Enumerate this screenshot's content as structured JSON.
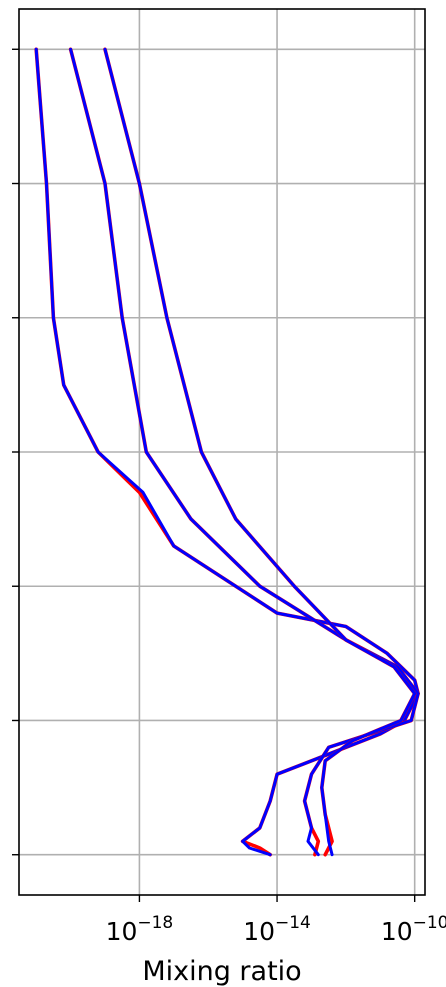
{
  "chart_data": {
    "type": "line",
    "title": "",
    "xlabel": "Mixing ratio",
    "ylabel": "",
    "x_scale": "log",
    "xlim_log10": [
      -21.5,
      -9.7
    ],
    "x_ticks": [
      {
        "base": "10",
        "exp": "−18",
        "log10": -18
      },
      {
        "base": "10",
        "exp": "−14",
        "log10": -14
      },
      {
        "base": "10",
        "exp": "−10",
        "log10": -10
      }
    ],
    "y_ticks": [
      0,
      1,
      2,
      3,
      4,
      5,
      6
    ],
    "y_tick_labels_shown": false,
    "ylim": [
      -0.3,
      6.3
    ],
    "grid": true,
    "colors": {
      "red": "#ff0000",
      "blue": "#0000ff",
      "grid": "#b0b0b0"
    },
    "series": [
      {
        "color": "red",
        "points": [
          [
            -21.0,
            6.0
          ],
          [
            -20.7,
            5.0
          ],
          [
            -20.5,
            4.0
          ],
          [
            -20.2,
            3.5
          ],
          [
            -19.2,
            3.0
          ],
          [
            -18.0,
            2.7
          ],
          [
            -17.0,
            2.3
          ],
          [
            -14.0,
            1.8
          ],
          [
            -12.0,
            1.7
          ],
          [
            -10.8,
            1.5
          ],
          [
            -10.0,
            1.3
          ],
          [
            -9.9,
            1.2
          ],
          [
            -10.3,
            1.0
          ],
          [
            -11.0,
            0.9
          ],
          [
            -13.0,
            0.7
          ],
          [
            -14.0,
            0.6
          ],
          [
            -14.2,
            0.4
          ],
          [
            -14.5,
            0.2
          ],
          [
            -15.0,
            0.1
          ],
          [
            -14.5,
            0.05
          ],
          [
            -14.2,
            0.0
          ]
        ]
      },
      {
        "color": "blue",
        "points": [
          [
            -21.0,
            6.0
          ],
          [
            -20.7,
            5.0
          ],
          [
            -20.5,
            4.0
          ],
          [
            -20.2,
            3.5
          ],
          [
            -19.2,
            3.0
          ],
          [
            -17.9,
            2.7
          ],
          [
            -17.0,
            2.3
          ],
          [
            -14.0,
            1.8
          ],
          [
            -12.0,
            1.7
          ],
          [
            -10.8,
            1.5
          ],
          [
            -10.0,
            1.3
          ],
          [
            -9.9,
            1.2
          ],
          [
            -10.3,
            1.0
          ],
          [
            -11.0,
            0.9
          ],
          [
            -13.0,
            0.7
          ],
          [
            -14.0,
            0.6
          ],
          [
            -14.2,
            0.4
          ],
          [
            -14.5,
            0.2
          ],
          [
            -15.0,
            0.1
          ],
          [
            -14.8,
            0.05
          ],
          [
            -14.2,
            0.0
          ]
        ]
      },
      {
        "color": "red",
        "points": [
          [
            -20.0,
            6.0
          ],
          [
            -19.0,
            5.0
          ],
          [
            -18.5,
            4.0
          ],
          [
            -17.8,
            3.0
          ],
          [
            -16.5,
            2.5
          ],
          [
            -14.5,
            2.0
          ],
          [
            -12.0,
            1.6
          ],
          [
            -10.5,
            1.4
          ],
          [
            -9.9,
            1.2
          ],
          [
            -10.1,
            1.0
          ],
          [
            -11.3,
            0.9
          ],
          [
            -12.5,
            0.8
          ],
          [
            -13.0,
            0.6
          ],
          [
            -13.2,
            0.4
          ],
          [
            -13.0,
            0.2
          ],
          [
            -12.8,
            0.1
          ],
          [
            -12.9,
            0.0
          ]
        ]
      },
      {
        "color": "blue",
        "points": [
          [
            -20.0,
            6.0
          ],
          [
            -19.0,
            5.0
          ],
          [
            -18.5,
            4.0
          ],
          [
            -17.8,
            3.0
          ],
          [
            -16.5,
            2.5
          ],
          [
            -14.5,
            2.0
          ],
          [
            -12.0,
            1.6
          ],
          [
            -10.5,
            1.4
          ],
          [
            -9.9,
            1.2
          ],
          [
            -10.1,
            1.0
          ],
          [
            -11.3,
            0.9
          ],
          [
            -12.5,
            0.8
          ],
          [
            -13.0,
            0.6
          ],
          [
            -13.2,
            0.4
          ],
          [
            -13.0,
            0.2
          ],
          [
            -13.1,
            0.1
          ],
          [
            -12.8,
            0.0
          ]
        ]
      },
      {
        "color": "red",
        "points": [
          [
            -19.0,
            6.0
          ],
          [
            -18.0,
            5.0
          ],
          [
            -17.2,
            4.0
          ],
          [
            -16.2,
            3.0
          ],
          [
            -15.2,
            2.5
          ],
          [
            -13.5,
            2.0
          ],
          [
            -12.0,
            1.6
          ],
          [
            -10.6,
            1.4
          ],
          [
            -10.0,
            1.2
          ],
          [
            -10.4,
            1.0
          ],
          [
            -11.8,
            0.85
          ],
          [
            -12.6,
            0.7
          ],
          [
            -12.7,
            0.5
          ],
          [
            -12.6,
            0.3
          ],
          [
            -12.4,
            0.1
          ],
          [
            -12.6,
            0.0
          ]
        ]
      },
      {
        "color": "blue",
        "points": [
          [
            -19.0,
            6.0
          ],
          [
            -18.0,
            5.0
          ],
          [
            -17.2,
            4.0
          ],
          [
            -16.2,
            3.0
          ],
          [
            -15.2,
            2.5
          ],
          [
            -13.5,
            2.0
          ],
          [
            -12.0,
            1.6
          ],
          [
            -10.6,
            1.4
          ],
          [
            -10.0,
            1.2
          ],
          [
            -10.4,
            1.0
          ],
          [
            -11.8,
            0.85
          ],
          [
            -12.6,
            0.7
          ],
          [
            -12.7,
            0.5
          ],
          [
            -12.6,
            0.3
          ],
          [
            -12.5,
            0.1
          ],
          [
            -12.4,
            0.0
          ]
        ]
      }
    ]
  }
}
